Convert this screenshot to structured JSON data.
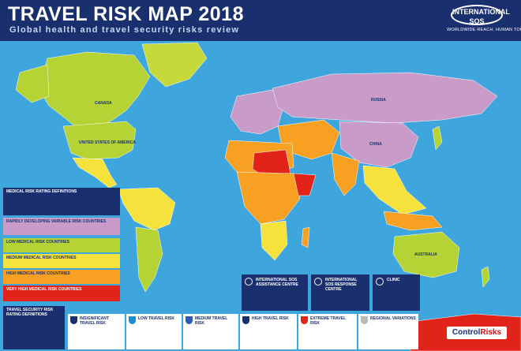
{
  "header": {
    "title": "TRAVEL RISK MAP 2018",
    "subtitle": "Global health and travel security risks review"
  },
  "logo": {
    "name": "INTERNATIONAL SOS",
    "tagline": "WORLDWIDE REACH. HUMAN TOUCH."
  },
  "map": {
    "country_labels": {
      "canada": "CANADA",
      "usa": "UNITED STATES OF AMERICA",
      "russia": "RUSSIA",
      "china": "CHINA",
      "australia": "AUSTRALIA"
    },
    "colors": {
      "ocean": "#3fa6dd",
      "low": "#b5d334",
      "medium": "#f6e23c",
      "high": "#f7a021",
      "very_high": "#e2231a",
      "variable": "#c99bc8",
      "insignificant": "#ffffff"
    }
  },
  "legend": {
    "medical_definitions_title": "MEDICAL RISK RATING DEFINITIONS",
    "medical_definitions_text": "",
    "variable_title": "RAPIDLY DEVELOPING VARIABLE RISK COUNTRIES",
    "low_title": "LOW MEDICAL RISK COUNTRIES",
    "medium_title": "MEDIUM MEDICAL RISK COUNTRIES",
    "high_title": "HIGH MEDICAL RISK COUNTRIES",
    "very_high_title": "VERY HIGH MEDICAL RISK COUNTRIES",
    "security_definitions_title": "TRAVEL SECURITY RISK RATING DEFINITIONS"
  },
  "security_ratings": [
    {
      "label": "INSIGNIFICANT TRAVEL RISK"
    },
    {
      "label": "LOW TRAVEL RISK"
    },
    {
      "label": "MEDIUM TRAVEL RISK"
    },
    {
      "label": "HIGH TRAVEL RISK"
    },
    {
      "label": "EXTREME TRAVEL RISK"
    },
    {
      "label": "REGIONAL VARIATIONS"
    }
  ],
  "info_boxes": [
    {
      "title": "INTERNATIONAL SOS ASSISTANCE CENTRE"
    },
    {
      "title": "INTERNATIONAL SOS RESPONSE CENTRE"
    },
    {
      "title": "CLINIC"
    }
  ],
  "partner": {
    "part1": "Control",
    "part2": "Risks"
  }
}
